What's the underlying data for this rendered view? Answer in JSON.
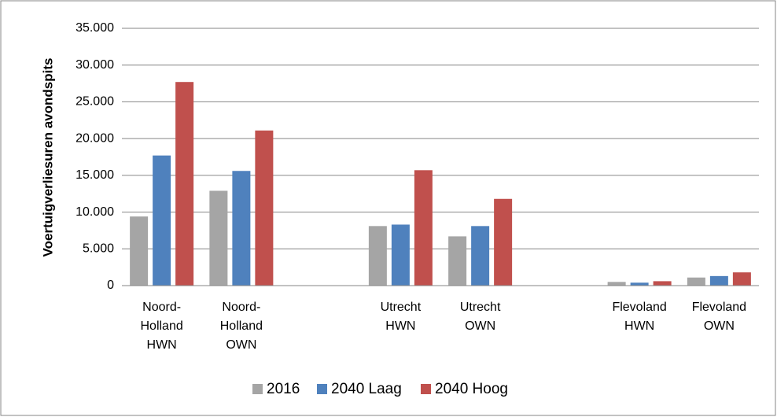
{
  "chart_data": {
    "type": "bar",
    "y_label": "Voertuigverliesuren avondspits",
    "categories": [
      "Noord-Holland HWN",
      "Noord-Holland OWN",
      null,
      "Utrecht HWN",
      "Utrecht OWN",
      null,
      "Flevoland HWN",
      "Flevoland OWN"
    ],
    "series": [
      {
        "name": "2016",
        "color": "#a5a5a5",
        "values": [
          9400,
          12900,
          null,
          8100,
          6700,
          null,
          500,
          1100
        ]
      },
      {
        "name": "2040 Laag",
        "color": "#4f81bd",
        "values": [
          17700,
          15600,
          null,
          8300,
          8100,
          null,
          400,
          1300
        ]
      },
      {
        "name": "2040 Hoog",
        "color": "#c0504d",
        "values": [
          27700,
          21100,
          null,
          15700,
          11800,
          null,
          600,
          1800
        ]
      }
    ],
    "ylim": [
      0,
      35000
    ],
    "yticks": [
      0,
      {
        "value": 5000,
        "label": "5.000"
      },
      {
        "value": 10000,
        "label": "10.000"
      },
      {
        "value": 15000,
        "label": "15.000"
      },
      {
        "value": 20000,
        "label": "20.000"
      },
      {
        "value": 25000,
        "label": "25.000"
      },
      {
        "value": 30000,
        "label": "30.000"
      },
      {
        "value": 35000,
        "label": "35.000"
      }
    ],
    "grid": true,
    "legend": "bottom"
  }
}
